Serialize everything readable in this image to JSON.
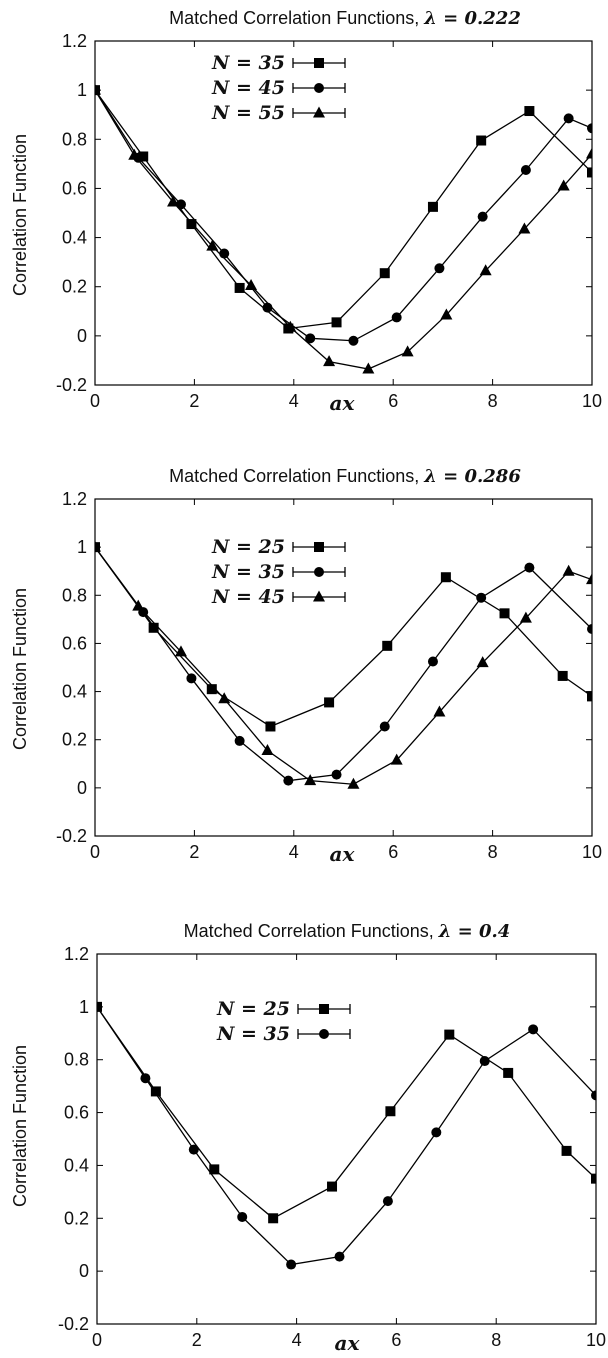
{
  "chart_data": [
    {
      "type": "line",
      "title_text": "Matched Correlation Functions, ",
      "title_math": "λ = 0.222",
      "xlabel": "ax",
      "ylabel": "Correlation Function",
      "xlim": [
        0,
        10
      ],
      "ylim": [
        -0.2,
        1.2
      ],
      "xticks": [
        "0",
        "2",
        "4",
        "6",
        "8",
        "10"
      ],
      "yticks": [
        "-0.2",
        "0",
        "0.2",
        "0.4",
        "0.6",
        "0.8",
        "1",
        "1.2"
      ],
      "grid": false,
      "legend_position": "top-center",
      "series": [
        {
          "name": "N = 35",
          "marker": "square",
          "x": [
            0,
            0.97,
            1.94,
            2.91,
            3.89,
            4.86,
            5.83,
            6.8,
            7.77,
            8.74,
            10
          ],
          "y": [
            1.0,
            0.73,
            0.455,
            0.195,
            0.03,
            0.055,
            0.255,
            0.525,
            0.795,
            0.915,
            0.665
          ]
        },
        {
          "name": "N = 45",
          "marker": "circle",
          "x": [
            0,
            0.87,
            1.73,
            2.6,
            3.47,
            4.33,
            5.2,
            6.07,
            6.93,
            7.8,
            8.67,
            9.53,
            10
          ],
          "y": [
            1.0,
            0.725,
            0.535,
            0.335,
            0.115,
            -0.01,
            -0.02,
            0.075,
            0.275,
            0.485,
            0.675,
            0.885,
            0.845
          ]
        },
        {
          "name": "N = 55",
          "marker": "triangle",
          "x": [
            0,
            0.79,
            1.57,
            2.36,
            3.14,
            3.93,
            4.71,
            5.5,
            6.29,
            7.07,
            7.86,
            8.64,
            9.43,
            10
          ],
          "y": [
            1.0,
            0.735,
            0.545,
            0.365,
            0.205,
            0.035,
            -0.105,
            -0.135,
            -0.065,
            0.085,
            0.265,
            0.435,
            0.61,
            0.74
          ]
        }
      ]
    },
    {
      "type": "line",
      "title_text": "Matched Correlation Functions, ",
      "title_math": "λ = 0.286",
      "xlabel": "ax",
      "ylabel": "Correlation Function",
      "xlim": [
        0,
        10
      ],
      "ylim": [
        -0.2,
        1.2
      ],
      "xticks": [
        "0",
        "2",
        "4",
        "6",
        "8",
        "10"
      ],
      "yticks": [
        "-0.2",
        "0",
        "0.2",
        "0.4",
        "0.6",
        "0.8",
        "1",
        "1.2"
      ],
      "grid": false,
      "legend_position": "top-center",
      "series": [
        {
          "name": "N = 25",
          "marker": "square",
          "x": [
            0,
            1.18,
            2.35,
            3.53,
            4.71,
            5.88,
            7.06,
            8.24,
            9.41,
            10
          ],
          "y": [
            1.0,
            0.665,
            0.41,
            0.255,
            0.355,
            0.59,
            0.875,
            0.725,
            0.465,
            0.38
          ]
        },
        {
          "name": "N = 35",
          "marker": "circle",
          "x": [
            0,
            0.97,
            1.94,
            2.91,
            3.89,
            4.86,
            5.83,
            6.8,
            7.77,
            8.74,
            10
          ],
          "y": [
            1.0,
            0.73,
            0.455,
            0.195,
            0.03,
            0.055,
            0.255,
            0.525,
            0.79,
            0.915,
            0.66
          ]
        },
        {
          "name": "N = 45",
          "marker": "triangle",
          "x": [
            0,
            0.87,
            1.73,
            2.6,
            3.47,
            4.33,
            5.2,
            6.07,
            6.93,
            7.8,
            8.67,
            9.53,
            10
          ],
          "y": [
            1.0,
            0.755,
            0.565,
            0.37,
            0.155,
            0.03,
            0.015,
            0.115,
            0.315,
            0.52,
            0.705,
            0.9,
            0.865
          ]
        }
      ]
    },
    {
      "type": "line",
      "title_text": "Matched Correlation Functions, ",
      "title_math": "λ = 0.4",
      "xlabel": "ax",
      "ylabel": "Correlation Function",
      "xlim": [
        0,
        10
      ],
      "ylim": [
        -0.2,
        1.2
      ],
      "xticks": [
        "0",
        "2",
        "4",
        "6",
        "8",
        "10"
      ],
      "yticks": [
        "-0.2",
        "0",
        "0.2",
        "0.4",
        "0.6",
        "0.8",
        "1",
        "1.2"
      ],
      "grid": false,
      "legend_position": "top-center",
      "series": [
        {
          "name": "N = 25",
          "marker": "square",
          "x": [
            0,
            1.18,
            2.35,
            3.53,
            4.71,
            5.88,
            7.06,
            8.24,
            9.41,
            10
          ],
          "y": [
            1.0,
            0.68,
            0.385,
            0.2,
            0.32,
            0.605,
            0.895,
            0.75,
            0.455,
            0.35
          ]
        },
        {
          "name": "N = 35",
          "marker": "circle",
          "x": [
            0,
            0.97,
            1.94,
            2.91,
            3.89,
            4.86,
            5.83,
            6.8,
            7.77,
            8.74,
            10
          ],
          "y": [
            1.0,
            0.73,
            0.46,
            0.205,
            0.025,
            0.055,
            0.265,
            0.525,
            0.795,
            0.915,
            0.665
          ]
        }
      ]
    }
  ]
}
